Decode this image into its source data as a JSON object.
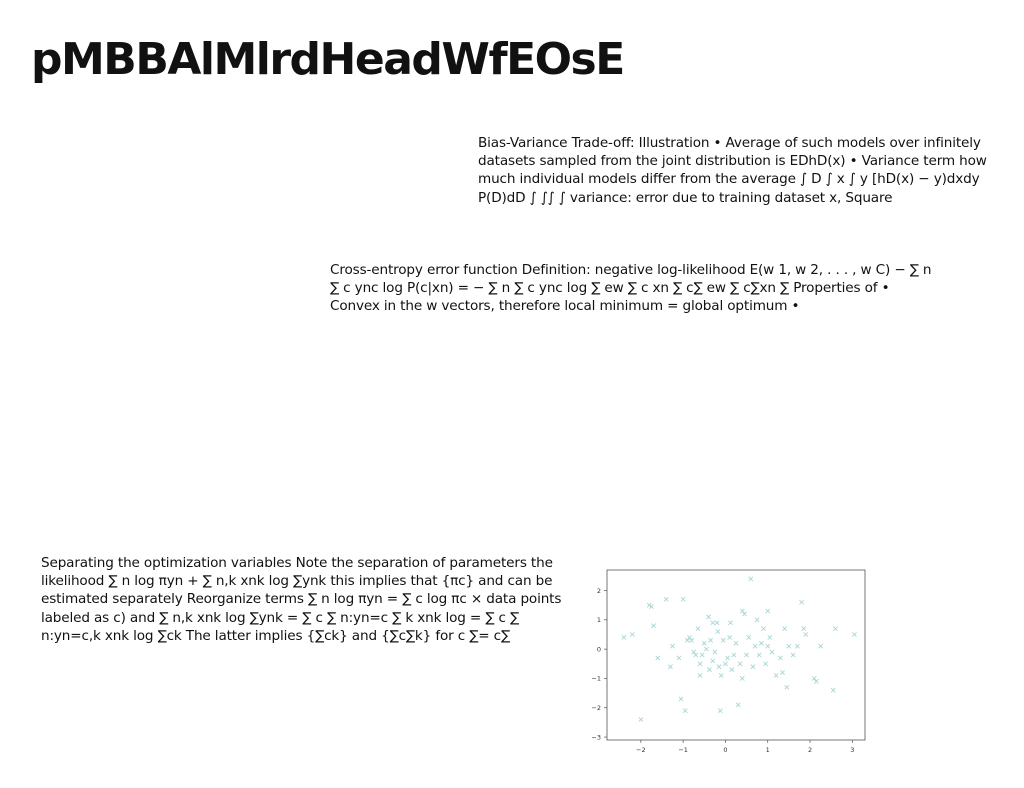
{
  "page": {
    "title": "pMBBAlMlrdHeadWfEOsE"
  },
  "text_blocks": [
    "Bias-Variance Trade-off: Illustration • Average of such models over infinitely datasets sampled from the joint distribution is EDhD(x) • Variance term how much individual models differ from the average ∫ D ∫ x ∫ y [hD(x) − y)dxdy P(D)dD ∫ ∫∫ ∫ variance: error due to training dataset x, Square",
    "Cross-entropy error function Definition: negative log-likelihood E(w 1, w 2, . . . , w C) − ∑ n ∑ c ync log P(c|xn) = − ∑ n ∑ c ync log ∑ ew ∑ c xn ∑ c∑ ew ∑ c∑xn ∑ Properties of • Convex in the w vectors, therefore local minimum = global optimum •",
    "Separating the optimization variables Note the separation of parameters the likelihood ∑ n log πyn + ∑ n,k xnk log ∑ynk this implies that {πc} and can be estimated separately Reorganize terms ∑ n log πyn = ∑ c log πc × data points labeled as c) and ∑ n,k xnk log ∑ynk = ∑ c ∑ n:yn=c ∑ k xnk log = ∑ c ∑ n:yn=c,k xnk log ∑ck The latter implies {∑ck} and {∑c∑k} for c ∑= c∑"
  ],
  "chart_data": {
    "type": "scatter",
    "title": "",
    "xlabel": "",
    "ylabel": "",
    "xlim": [
      -2.8,
      3.3
    ],
    "ylim": [
      -3.1,
      2.7
    ],
    "xticks": [
      "−2",
      "−1",
      "0",
      "1",
      "2",
      "3"
    ],
    "yticks": [
      "−3",
      "−2",
      "−1",
      "0",
      "1",
      "2"
    ],
    "grid": false,
    "marker": "x",
    "marker_color": "#a8d5d6",
    "axis_color": "#555555",
    "series": [
      {
        "values": [
          [
            -2.4,
            0.4
          ],
          [
            -2.2,
            0.5
          ],
          [
            -2.0,
            -2.4
          ],
          [
            -1.8,
            1.5
          ],
          [
            -1.75,
            1.45
          ],
          [
            -1.7,
            0.8
          ],
          [
            -1.6,
            -0.3
          ],
          [
            -1.4,
            1.7
          ],
          [
            -1.25,
            0.1
          ],
          [
            -1.1,
            -0.3
          ],
          [
            -1.05,
            -1.7
          ],
          [
            -1.0,
            1.7
          ],
          [
            -0.95,
            -2.1
          ],
          [
            -0.9,
            0.3
          ],
          [
            -0.85,
            0.4
          ],
          [
            -0.8,
            0.3
          ],
          [
            -0.75,
            -0.1
          ],
          [
            -0.7,
            -0.2
          ],
          [
            -0.65,
            0.7
          ],
          [
            -0.6,
            -0.5
          ],
          [
            -0.55,
            -0.2
          ],
          [
            -0.5,
            0.2
          ],
          [
            -0.45,
            0.0
          ],
          [
            -0.4,
            1.1
          ],
          [
            -0.38,
            -0.7
          ],
          [
            -0.35,
            0.3
          ],
          [
            -0.3,
            -0.4
          ],
          [
            -0.25,
            -0.1
          ],
          [
            -0.2,
            0.9
          ],
          [
            -0.18,
            0.6
          ],
          [
            -0.15,
            -0.6
          ],
          [
            -0.12,
            -2.1
          ],
          [
            -0.1,
            -0.9
          ],
          [
            -0.05,
            0.3
          ],
          [
            0.0,
            -0.5
          ],
          [
            0.05,
            -0.3
          ],
          [
            0.1,
            0.4
          ],
          [
            0.12,
            0.9
          ],
          [
            0.15,
            -0.7
          ],
          [
            0.2,
            -0.2
          ],
          [
            0.25,
            0.2
          ],
          [
            0.3,
            -1.9
          ],
          [
            0.35,
            -0.5
          ],
          [
            0.4,
            1.3
          ],
          [
            0.45,
            1.2
          ],
          [
            0.5,
            -0.2
          ],
          [
            0.55,
            0.4
          ],
          [
            0.6,
            2.4
          ],
          [
            0.65,
            -0.6
          ],
          [
            0.7,
            0.1
          ],
          [
            0.75,
            1.0
          ],
          [
            0.8,
            -0.2
          ],
          [
            0.85,
            0.2
          ],
          [
            0.9,
            0.7
          ],
          [
            0.95,
            -0.5
          ],
          [
            1.0,
            1.3
          ],
          [
            1.05,
            0.4
          ],
          [
            1.1,
            -0.1
          ],
          [
            1.2,
            -0.9
          ],
          [
            1.3,
            -0.3
          ],
          [
            1.35,
            -0.8
          ],
          [
            1.4,
            0.7
          ],
          [
            1.45,
            -1.3
          ],
          [
            1.5,
            0.1
          ],
          [
            1.6,
            -0.2
          ],
          [
            1.7,
            0.1
          ],
          [
            1.8,
            1.6
          ],
          [
            1.85,
            0.7
          ],
          [
            1.9,
            0.5
          ],
          [
            2.1,
            -1.0
          ],
          [
            2.15,
            -1.1
          ],
          [
            2.25,
            0.1
          ],
          [
            2.6,
            0.7
          ],
          [
            2.55,
            -1.4
          ],
          [
            3.05,
            0.5
          ],
          [
            -0.6,
            -0.9
          ],
          [
            -0.3,
            0.9
          ],
          [
            0.4,
            -1.0
          ],
          [
            -1.3,
            -0.6
          ],
          [
            1.0,
            0.1
          ]
        ]
      }
    ]
  }
}
